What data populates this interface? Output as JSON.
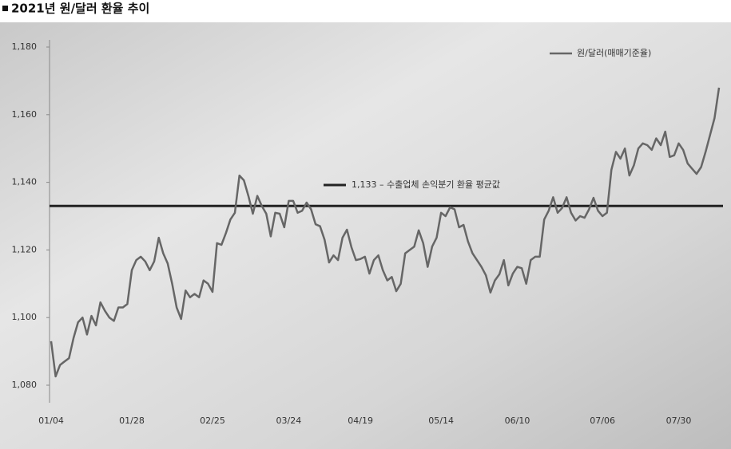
{
  "chart_data": {
    "type": "line",
    "title": "2021년 원/달러 환율 추이",
    "categories": [
      "01/04",
      null,
      null,
      null,
      null,
      null,
      null,
      null,
      null,
      null,
      null,
      null,
      null,
      null,
      null,
      null,
      null,
      null,
      "01/28",
      null,
      null,
      null,
      null,
      null,
      null,
      null,
      null,
      null,
      null,
      null,
      null,
      null,
      null,
      null,
      null,
      null,
      "02/25",
      null,
      null,
      null,
      null,
      null,
      null,
      null,
      null,
      null,
      null,
      null,
      null,
      null,
      null,
      null,
      null,
      "03/24",
      null,
      null,
      null,
      null,
      null,
      null,
      null,
      null,
      null,
      null,
      null,
      null,
      null,
      null,
      null,
      "04/19",
      null,
      null,
      null,
      null,
      null,
      null,
      null,
      null,
      null,
      null,
      null,
      null,
      null,
      null,
      null,
      null,
      null,
      "05/14",
      null,
      null,
      null,
      null,
      null,
      null,
      null,
      null,
      null,
      null,
      null,
      null,
      null,
      null,
      null,
      null,
      "06/10",
      null,
      null,
      null,
      null,
      null,
      null,
      null,
      null,
      null,
      null,
      null,
      null,
      null,
      null,
      null,
      null,
      null,
      null,
      "07/06",
      null,
      null,
      null,
      null,
      null,
      null,
      null,
      null,
      null,
      null,
      null,
      null,
      null,
      null,
      null,
      null,
      "07/30",
      null,
      null,
      null,
      null,
      null,
      null,
      null,
      null,
      null
    ],
    "series": [
      {
        "name": "원/달러(매매기준율)",
        "color": "#666666",
        "values": [
          1093,
          1082.6,
          1086,
          1087,
          1088,
          1094,
          1098.6,
          1100,
          1095,
          1100.5,
          1097.7,
          1104.5,
          1102,
          1100,
          1099,
          1103,
          1103,
          1104,
          1114,
          1117,
          1118,
          1116.6,
          1114,
          1116.6,
          1123.6,
          1119,
          1116,
          1110,
          1103,
          1099.6,
          1108,
          1106,
          1107,
          1106,
          1111,
          1110,
          1107.6,
          1122,
          1121.5,
          1125,
          1129,
          1131,
          1142,
          1140.6,
          1136,
          1130.7,
          1136,
          1133,
          1130.7,
          1124,
          1131,
          1130.7,
          1126.7,
          1134.5,
          1134.5,
          1131,
          1131.6,
          1134,
          1132,
          1127.6,
          1127,
          1123,
          1116.3,
          1118.4,
          1117,
          1123.6,
          1126,
          1120.8,
          1117,
          1117.3,
          1118,
          1113,
          1117,
          1118.4,
          1114,
          1111,
          1112,
          1107.8,
          1110,
          1119,
          1120,
          1121,
          1125.8,
          1122,
          1115,
          1121,
          1123.6,
          1131,
          1130,
          1132.6,
          1132,
          1126.7,
          1127.4,
          1122.5,
          1119,
          1117,
          1115,
          1112.5,
          1107.4,
          1111,
          1112.8,
          1117,
          1109.5,
          1113,
          1115,
          1114.6,
          1110,
          1117,
          1118,
          1118,
          1129,
          1131.6,
          1135.6,
          1131,
          1132.4,
          1135.6,
          1131,
          1128.7,
          1130,
          1129.5,
          1132,
          1135.4,
          1131.6,
          1130,
          1131,
          1143.7,
          1149,
          1147,
          1150,
          1142,
          1145,
          1150,
          1151.5,
          1151,
          1149.6,
          1153,
          1151,
          1155,
          1147.5,
          1148,
          1151.5,
          1149.6,
          1145.6,
          1144,
          1142.5,
          1144.5,
          1149,
          1154,
          1159,
          1168
        ]
      }
    ],
    "reference": {
      "value": 1133,
      "label": "1,133 – 수출업체 손익분기 환율 평균값",
      "color": "#222222"
    },
    "ylim": [
      1075,
      1182
    ],
    "yticks": [
      {
        "value": 1080,
        "label": "1,080"
      },
      {
        "value": 1100,
        "label": "1,100"
      },
      {
        "value": 1120,
        "label": "1,120"
      },
      {
        "value": 1140,
        "label": "1,140"
      },
      {
        "value": 1160,
        "label": "1,160"
      },
      {
        "value": 1180,
        "label": "1,180"
      }
    ],
    "legend": "top-right"
  }
}
